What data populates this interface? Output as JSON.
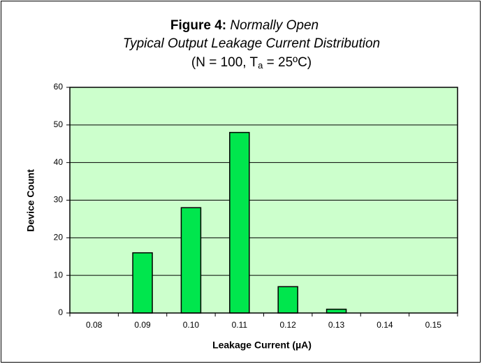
{
  "chart_data": {
    "type": "bar",
    "title": "Figure 4:",
    "title_italic": "Normally Open",
    "subtitle": "Typical Output Leakage Current Distribution",
    "note": {
      "prefix": "(N = 100, T",
      "subscript": "a",
      "suffix": " = 25ºC)"
    },
    "x_label": "Leakage Current (µA)",
    "y_label": "Device Count",
    "categories": [
      "0.08",
      "0.09",
      "0.10",
      "0.11",
      "0.12",
      "0.13",
      "0.14",
      "0.15"
    ],
    "values": [
      0,
      16,
      28,
      48,
      7,
      1,
      0,
      0
    ],
    "color": "#00e64d",
    "plot_background": "#ccffcc",
    "ylim": [
      0,
      60
    ],
    "yticks": [
      0,
      10,
      20,
      30,
      40,
      50,
      60
    ],
    "grid": true
  }
}
